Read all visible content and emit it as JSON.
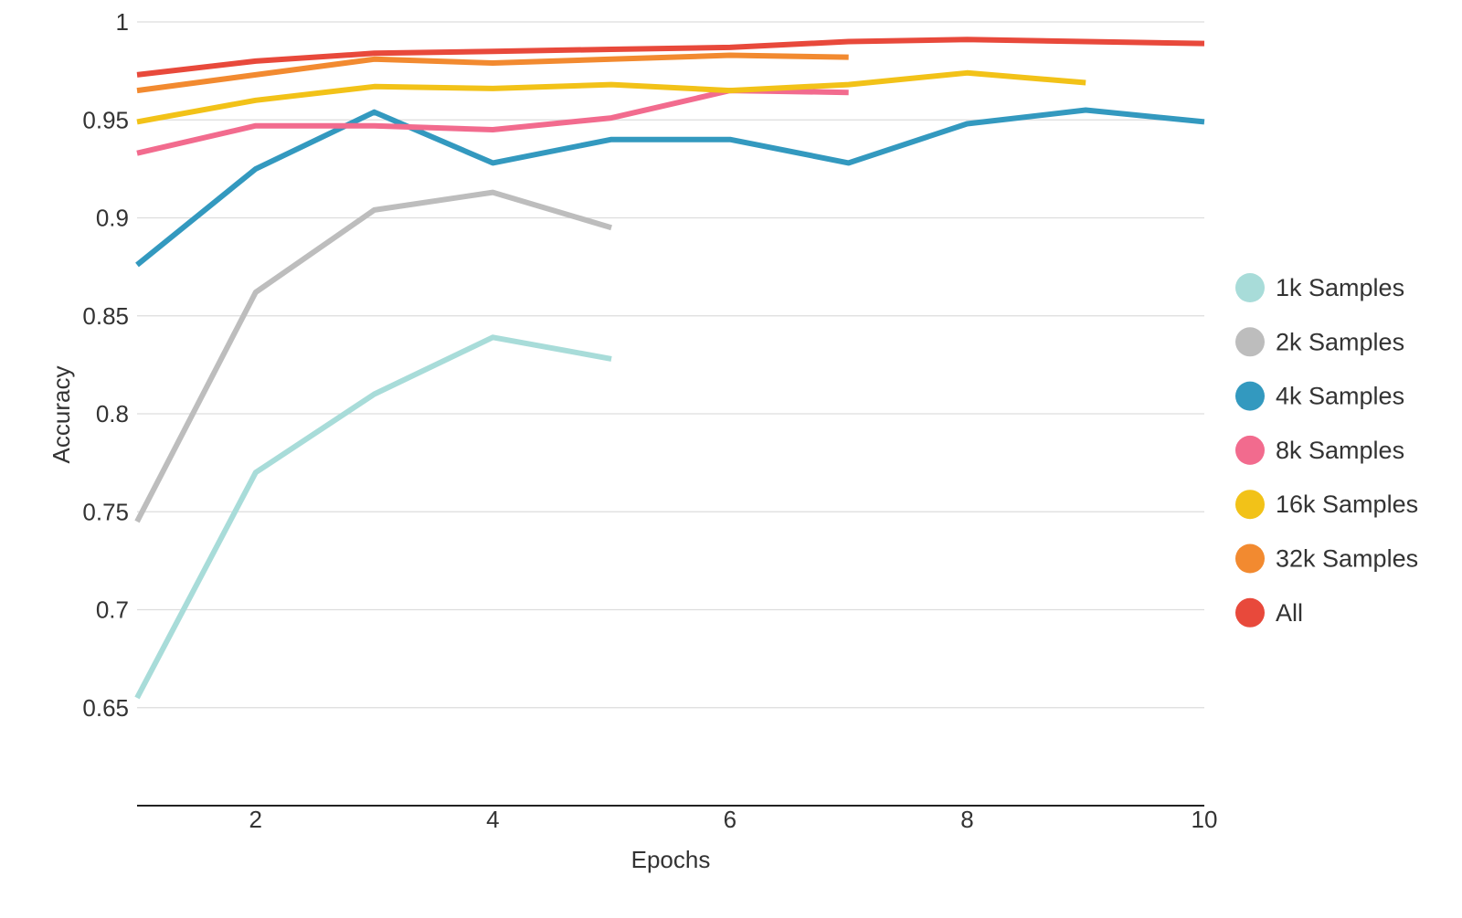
{
  "chart_data": {
    "type": "line",
    "title": "",
    "xlabel": "Epochs",
    "ylabel": "Accuracy",
    "xlim": [
      1,
      10
    ],
    "ylim": [
      0.6,
      1.0
    ],
    "xticks": [
      2,
      4,
      6,
      8,
      10
    ],
    "yticks": [
      0.65,
      0.7,
      0.75,
      0.8,
      0.85,
      0.9,
      0.95,
      1
    ],
    "ytick_labels": [
      "0.65",
      "0.7",
      "0.75",
      "0.8",
      "0.85",
      "0.9",
      "0.95",
      "1"
    ],
    "xtick_labels": [
      "2",
      "4",
      "6",
      "8",
      "10"
    ],
    "grid": "horizontal",
    "legend_position": "right",
    "series": [
      {
        "name": "1k Samples",
        "color": "#a8dcd9",
        "x": [
          1,
          2,
          3,
          4,
          5
        ],
        "y": [
          0.655,
          0.77,
          0.81,
          0.839,
          0.828
        ]
      },
      {
        "name": "2k Samples",
        "color": "#bdbdbd",
        "x": [
          1,
          2,
          3,
          4,
          5
        ],
        "y": [
          0.745,
          0.862,
          0.904,
          0.913,
          0.895
        ]
      },
      {
        "name": "4k Samples",
        "color": "#3399bf",
        "x": [
          1,
          2,
          3,
          4,
          5,
          6,
          7,
          8,
          9,
          10
        ],
        "y": [
          0.876,
          0.925,
          0.954,
          0.928,
          0.94,
          0.94,
          0.928,
          0.948,
          0.955,
          0.949
        ]
      },
      {
        "name": "8k Samples",
        "color": "#f26b8e",
        "x": [
          1,
          2,
          3,
          4,
          5,
          6,
          7
        ],
        "y": [
          0.933,
          0.947,
          0.947,
          0.945,
          0.951,
          0.965,
          0.964
        ]
      },
      {
        "name": "16k Samples",
        "color": "#f2c218",
        "x": [
          1,
          2,
          3,
          4,
          5,
          6,
          7,
          8,
          9
        ],
        "y": [
          0.949,
          0.96,
          0.967,
          0.966,
          0.968,
          0.965,
          0.968,
          0.974,
          0.969
        ]
      },
      {
        "name": "32k Samples",
        "color": "#f28a30",
        "x": [
          1,
          2,
          3,
          4,
          5,
          6,
          7
        ],
        "y": [
          0.965,
          0.973,
          0.981,
          0.979,
          0.981,
          0.983,
          0.982
        ]
      },
      {
        "name": "All",
        "color": "#e8493b",
        "x": [
          1,
          2,
          3,
          4,
          5,
          6,
          7,
          8,
          9,
          10
        ],
        "y": [
          0.973,
          0.98,
          0.984,
          0.985,
          0.986,
          0.987,
          0.99,
          0.991,
          0.99,
          0.989
        ]
      }
    ]
  }
}
